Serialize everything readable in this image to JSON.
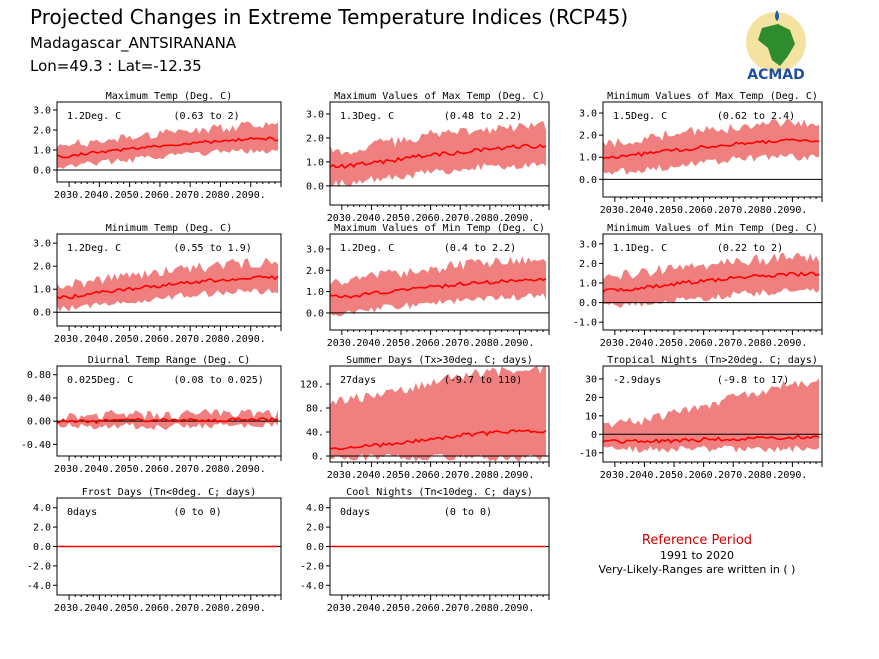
{
  "header": {
    "title": "Projected Changes in Extreme Temperature Indices (RCP45)",
    "location": "Madagascar_ANTSIRANANA",
    "coords": "Lon=49.3 : Lat=-12.35",
    "logo_text": "ACMAD"
  },
  "reference": {
    "title": "Reference Period",
    "period": "1991 to 2020",
    "note": "Very-Likely-Ranges are written in ( )"
  },
  "colors": {
    "band": "#f08080",
    "line": "#ff0000",
    "zero": "#000000",
    "ref_title": "#cc0000"
  },
  "x_tick_labels": [
    "2030.",
    "2040.",
    "2050.",
    "2060.",
    "2070.",
    "2080.",
    "2090."
  ],
  "chart_data": [
    {
      "type": "area",
      "title": "Maximum Temp (Deg. C)",
      "value_label": "1.2Deg. C",
      "range_label": "(0.63 to 2)",
      "x": [
        2030,
        2040,
        2050,
        2060,
        2070,
        2080,
        2090
      ],
      "xlim": [
        2026,
        2100
      ],
      "ylim": [
        -0.6,
        3.4
      ],
      "yticks": [
        0.0,
        1.0,
        2.0,
        3.0
      ],
      "ytick_labels": [
        "0.0",
        "1.0",
        "2.0",
        "3.0"
      ],
      "mean": [
        0.7,
        0.9,
        1.05,
        1.2,
        1.35,
        1.45,
        1.55
      ],
      "low": [
        0.2,
        0.35,
        0.5,
        0.65,
        0.8,
        0.9,
        0.95
      ],
      "high": [
        1.3,
        1.45,
        1.65,
        1.8,
        1.95,
        2.1,
        2.2
      ]
    },
    {
      "type": "area",
      "title": "Maximum Values of Max Temp (Deg. C)",
      "value_label": "1.3Deg. C",
      "range_label": "(0.48 to 2.2)",
      "x": [
        2030,
        2040,
        2050,
        2060,
        2070,
        2080,
        2090
      ],
      "xlim": [
        2026,
        2100
      ],
      "ylim": [
        -0.8,
        3.5
      ],
      "yticks": [
        0.0,
        1.0,
        2.0,
        3.0
      ],
      "ytick_labels": [
        "0.0",
        "1.0",
        "2.0",
        "3.0"
      ],
      "mean": [
        0.8,
        0.95,
        1.1,
        1.3,
        1.4,
        1.55,
        1.65
      ],
      "low": [
        0.1,
        0.25,
        0.4,
        0.55,
        0.7,
        0.8,
        0.85
      ],
      "high": [
        1.5,
        1.7,
        1.9,
        2.1,
        2.25,
        2.4,
        2.5
      ]
    },
    {
      "type": "area",
      "title": "Minimum Values of Max Temp (Deg. C)",
      "value_label": "1.5Deg. C",
      "range_label": "(0.62 to 2.4)",
      "x": [
        2030,
        2040,
        2050,
        2060,
        2070,
        2080,
        2090
      ],
      "xlim": [
        2026,
        2100
      ],
      "ylim": [
        -0.8,
        3.5
      ],
      "yticks": [
        0.0,
        1.0,
        2.0,
        3.0
      ],
      "ytick_labels": [
        "0.0",
        "1.0",
        "2.0",
        "3.0"
      ],
      "mean": [
        1.0,
        1.15,
        1.3,
        1.45,
        1.6,
        1.7,
        1.75
      ],
      "low": [
        0.3,
        0.45,
        0.6,
        0.75,
        0.9,
        1.0,
        1.0
      ],
      "high": [
        1.7,
        1.85,
        2.05,
        2.2,
        2.35,
        2.5,
        2.55
      ]
    },
    {
      "type": "area",
      "title": "Minimum Temp (Deg. C)",
      "value_label": "1.2Deg. C",
      "range_label": "(0.55 to 1.9)",
      "x": [
        2030,
        2040,
        2050,
        2060,
        2070,
        2080,
        2090
      ],
      "xlim": [
        2026,
        2100
      ],
      "ylim": [
        -0.6,
        3.4
      ],
      "yticks": [
        0.0,
        1.0,
        2.0,
        3.0
      ],
      "ytick_labels": [
        "0.0",
        "1.0",
        "2.0",
        "3.0"
      ],
      "mean": [
        0.65,
        0.85,
        1.0,
        1.15,
        1.3,
        1.4,
        1.5
      ],
      "low": [
        0.15,
        0.3,
        0.45,
        0.6,
        0.75,
        0.85,
        0.9
      ],
      "high": [
        1.2,
        1.4,
        1.6,
        1.75,
        1.9,
        2.05,
        2.15
      ]
    },
    {
      "type": "area",
      "title": "Maximum Values of Min Temp (Deg. C)",
      "value_label": "1.2Deg. C",
      "range_label": "(0.4 to 2.2)",
      "x": [
        2030,
        2040,
        2050,
        2060,
        2070,
        2080,
        2090
      ],
      "xlim": [
        2026,
        2100
      ],
      "ylim": [
        -0.8,
        3.7
      ],
      "yticks": [
        0.0,
        1.0,
        2.0,
        3.0
      ],
      "ytick_labels": [
        "0.0",
        "1.0",
        "2.0",
        "3.0"
      ],
      "mean": [
        0.75,
        0.9,
        1.05,
        1.2,
        1.35,
        1.45,
        1.55
      ],
      "low": [
        0.0,
        0.15,
        0.3,
        0.45,
        0.6,
        0.7,
        0.75
      ],
      "high": [
        1.5,
        1.7,
        1.9,
        2.05,
        2.25,
        2.4,
        2.5
      ]
    },
    {
      "type": "area",
      "title": "Minimum Values of Min Temp (Deg. C)",
      "value_label": "1.1Deg. C",
      "range_label": "(0.22 to 2)",
      "x": [
        2030,
        2040,
        2050,
        2060,
        2070,
        2080,
        2090
      ],
      "xlim": [
        2026,
        2100
      ],
      "ylim": [
        -1.4,
        3.5
      ],
      "yticks": [
        -1.0,
        0.0,
        1.0,
        2.0,
        3.0
      ],
      "ytick_labels": [
        "-1.0",
        "0.0",
        "1.0",
        "2.0",
        "3.0"
      ],
      "mean": [
        0.6,
        0.75,
        0.95,
        1.1,
        1.25,
        1.35,
        1.45
      ],
      "low": [
        -0.2,
        -0.05,
        0.1,
        0.25,
        0.4,
        0.5,
        0.55
      ],
      "high": [
        1.4,
        1.55,
        1.75,
        1.95,
        2.1,
        2.2,
        2.3
      ]
    },
    {
      "type": "area",
      "title": "Diurnal Temp Range (Deg. C)",
      "value_label": "0.025Deg. C",
      "range_label": "(0.08 to 0.025)",
      "x": [
        2030,
        2040,
        2050,
        2060,
        2070,
        2080,
        2090
      ],
      "xlim": [
        2026,
        2100
      ],
      "ylim": [
        -0.6,
        0.95
      ],
      "yticks": [
        -0.4,
        0.0,
        0.4,
        0.8
      ],
      "ytick_labels": [
        "-0.40",
        "0.00",
        "0.40",
        "0.80"
      ],
      "mean": [
        0.0,
        0.0,
        0.02,
        0.01,
        0.03,
        0.02,
        0.03
      ],
      "low": [
        -0.08,
        -0.1,
        -0.08,
        -0.1,
        -0.07,
        -0.09,
        -0.06
      ],
      "high": [
        0.08,
        0.1,
        0.12,
        0.1,
        0.14,
        0.12,
        0.12
      ]
    },
    {
      "type": "area",
      "title": "Summer Days (Tx>30deg. C; days)",
      "value_label": "27days",
      "range_label": "(-9.7 to 110)",
      "x": [
        2030,
        2040,
        2050,
        2060,
        2070,
        2080,
        2090
      ],
      "xlim": [
        2026,
        2100
      ],
      "ylim": [
        -10,
        150
      ],
      "yticks": [
        0,
        40,
        80,
        120
      ],
      "ytick_labels": [
        "0.",
        "40.",
        "80.",
        "120."
      ],
      "mean": [
        12,
        17,
        22,
        28,
        34,
        38,
        42
      ],
      "low": [
        -3,
        -3,
        -3,
        -3,
        -3,
        -3,
        -3
      ],
      "high": [
        90,
        100,
        110,
        125,
        135,
        140,
        145
      ]
    },
    {
      "type": "area",
      "title": "Tropical Nights (Tn>20deg. C; days)",
      "value_label": "-2.9days",
      "range_label": "(-9.8 to 17)",
      "x": [
        2030,
        2040,
        2050,
        2060,
        2070,
        2080,
        2090
      ],
      "xlim": [
        2026,
        2100
      ],
      "ylim": [
        -15,
        37
      ],
      "yticks": [
        -10,
        0,
        10,
        20,
        30
      ],
      "ytick_labels": [
        "-10",
        "0",
        "10",
        "20",
        "30"
      ],
      "mean": [
        -4,
        -4,
        -3.5,
        -3,
        -2.5,
        -2,
        -1.5
      ],
      "low": [
        -8,
        -8,
        -8,
        -8,
        -8,
        -8,
        -8
      ],
      "high": [
        5,
        8,
        12,
        16,
        20,
        24,
        28
      ]
    },
    {
      "type": "area",
      "title": "Frost Days (Tn<0deg. C; days)",
      "value_label": "0days",
      "range_label": "(0 to 0)",
      "x": [
        2030,
        2040,
        2050,
        2060,
        2070,
        2080,
        2090
      ],
      "xlim": [
        2026,
        2100
      ],
      "ylim": [
        -5,
        5
      ],
      "yticks": [
        -4,
        -2,
        0,
        2,
        4
      ],
      "ytick_labels": [
        "-4.0",
        "-2.0",
        "0.0",
        "2.0",
        "4.0"
      ],
      "mean": [
        0,
        0,
        0,
        0,
        0,
        0,
        0
      ],
      "low": [
        0,
        0,
        0,
        0,
        0,
        0,
        0
      ],
      "high": [
        0,
        0,
        0,
        0,
        0,
        0,
        0
      ]
    },
    {
      "type": "area",
      "title": "Cool Nights (Tn<10deg. C; days)",
      "value_label": "0days",
      "range_label": "(0 to 0)",
      "x": [
        2030,
        2040,
        2050,
        2060,
        2070,
        2080,
        2090
      ],
      "xlim": [
        2026,
        2100
      ],
      "ylim": [
        -5,
        5
      ],
      "yticks": [
        -4,
        -2,
        0,
        2,
        4
      ],
      "ytick_labels": [
        "-4.0",
        "-2.0",
        "0.0",
        "2.0",
        "4.0"
      ],
      "mean": [
        0,
        0,
        0,
        0,
        0,
        0,
        0
      ],
      "low": [
        0,
        0,
        0,
        0,
        0,
        0,
        0
      ],
      "high": [
        0,
        0,
        0,
        0,
        0,
        0,
        0
      ]
    }
  ]
}
